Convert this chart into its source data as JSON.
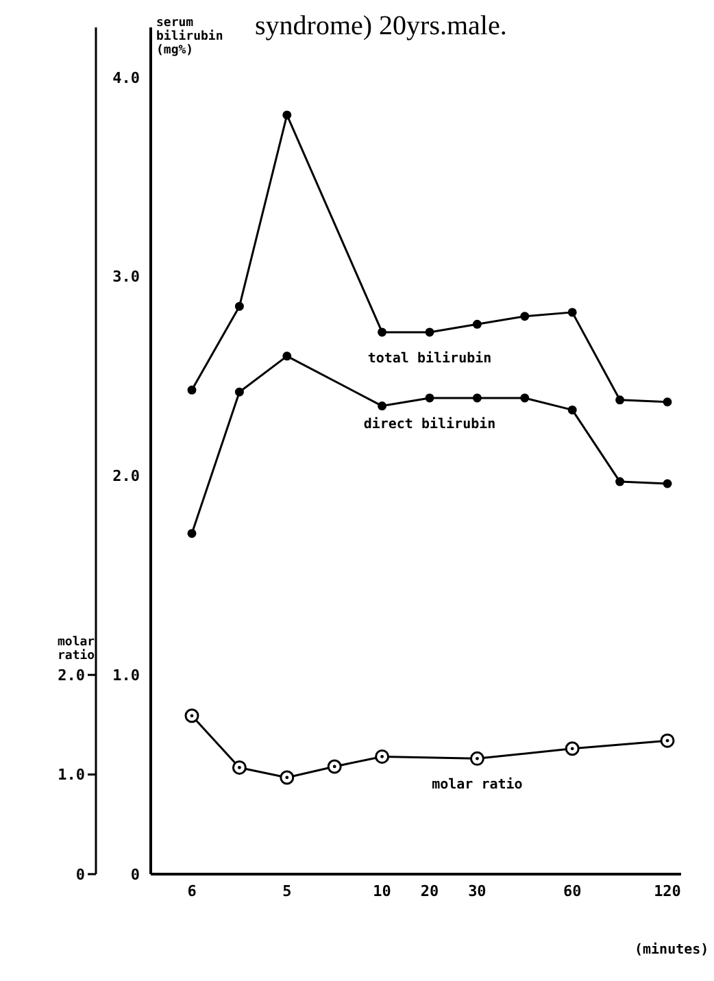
{
  "chart_data": {
    "type": "line",
    "title": "syndrome) 20yrs.male.",
    "ylabel": "serum bilirubin (mg%)",
    "y2label": "molar ratio",
    "xlabel": "(minutes)",
    "categories": [
      "6",
      null,
      "5",
      null,
      "10",
      "20",
      "30",
      null,
      "60",
      null,
      "120"
    ],
    "series": [
      {
        "name": "total bilirubin",
        "color": "#000000",
        "values": [
          2.43,
          2.85,
          3.81,
          null,
          2.72,
          2.72,
          2.76,
          2.8,
          2.82,
          2.38,
          2.37
        ]
      },
      {
        "name": "direct bilirubin",
        "color": "#000000",
        "values": [
          1.71,
          2.42,
          2.6,
          null,
          2.35,
          2.39,
          2.39,
          2.39,
          2.33,
          1.97,
          1.96
        ]
      },
      {
        "name": "molar ratio",
        "color": "#000000",
        "axis": "y2",
        "values": [
          1.59,
          1.07,
          0.97,
          1.08,
          1.18,
          null,
          1.16,
          null,
          1.26,
          null,
          1.34
        ]
      }
    ],
    "ylim": [
      0,
      4.25
    ],
    "yticks": [
      0,
      {
        "value": 1,
        "label": "1.0"
      },
      {
        "value": 2,
        "label": "2.0"
      },
      {
        "value": 3,
        "label": "3.0"
      },
      {
        "value": 4,
        "label": "4.0"
      }
    ],
    "y2lim": [
      0,
      8.5
    ],
    "y2ticks": [
      0,
      {
        "value": 1,
        "label": "1.0"
      },
      {
        "value": 2,
        "label": "2.0"
      }
    ],
    "marker": "circle"
  }
}
